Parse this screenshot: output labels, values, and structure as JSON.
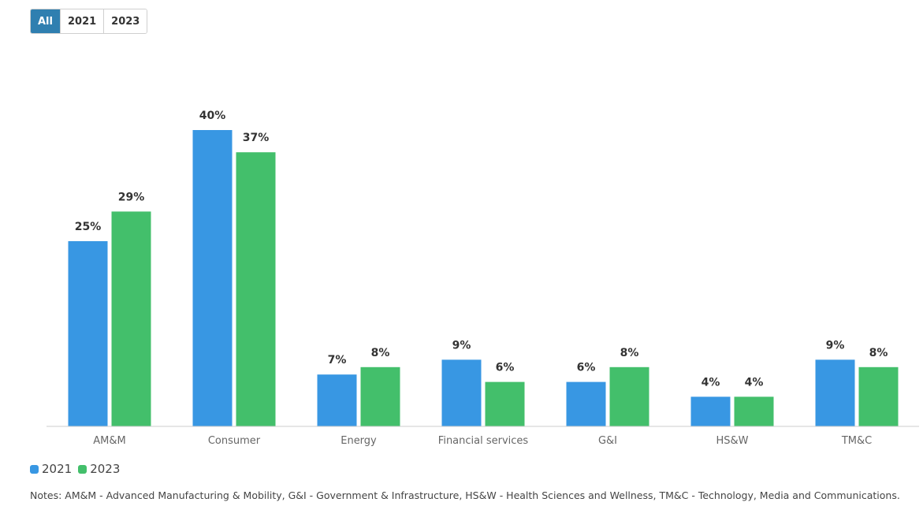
{
  "filters": [
    {
      "label": "All",
      "active": true
    },
    {
      "label": "2021",
      "active": false
    },
    {
      "label": "2023",
      "active": false
    }
  ],
  "colors": {
    "series_2021": "#3897e3",
    "series_2023": "#43bf6b",
    "filter_active": "#2f7fb0"
  },
  "chart_data": {
    "type": "bar",
    "categories": [
      "AM&M",
      "Consumer",
      "Energy",
      "Financial services",
      "G&I",
      "HS&W",
      "TM&C"
    ],
    "series": [
      {
        "name": "2021",
        "values": [
          25,
          40,
          7,
          9,
          6,
          4,
          9
        ]
      },
      {
        "name": "2023",
        "values": [
          29,
          37,
          8,
          6,
          8,
          4,
          8
        ]
      }
    ],
    "value_suffix": "%",
    "ylim": [
      0,
      40
    ],
    "grid": false,
    "legend_placement": "bottom-left"
  },
  "legend": [
    {
      "label": "2021"
    },
    {
      "label": "2023"
    }
  ],
  "notes": "Notes: AM&M - Advanced Manufacturing & Mobility, G&I - Government & Infrastructure, HS&W - Health Sciences and Wellness, TM&C - Technology, Media and Communications."
}
